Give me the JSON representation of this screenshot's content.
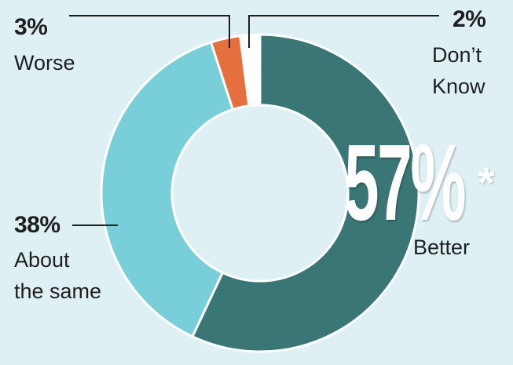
{
  "chart_data": {
    "type": "pie",
    "donut": true,
    "slices": [
      {
        "label": "Better",
        "value": 57,
        "color": "#3a7676"
      },
      {
        "label": "About the same",
        "value": 38,
        "color": "#78cfd9"
      },
      {
        "label": "Worse",
        "value": 3,
        "color": "#e56f3d"
      },
      {
        "label": "Don’t Know",
        "value": 2,
        "color": "#ffffff"
      }
    ]
  },
  "labels": {
    "better_value": "57%",
    "better_mark": "*",
    "better_text": "Better",
    "same_value": "38%",
    "same_line1": "About",
    "same_line2": "the same",
    "worse_value": "3%",
    "worse_text": "Worse",
    "dk_value": "2%",
    "dk_line1": "Don’t",
    "dk_line2": "Know"
  }
}
